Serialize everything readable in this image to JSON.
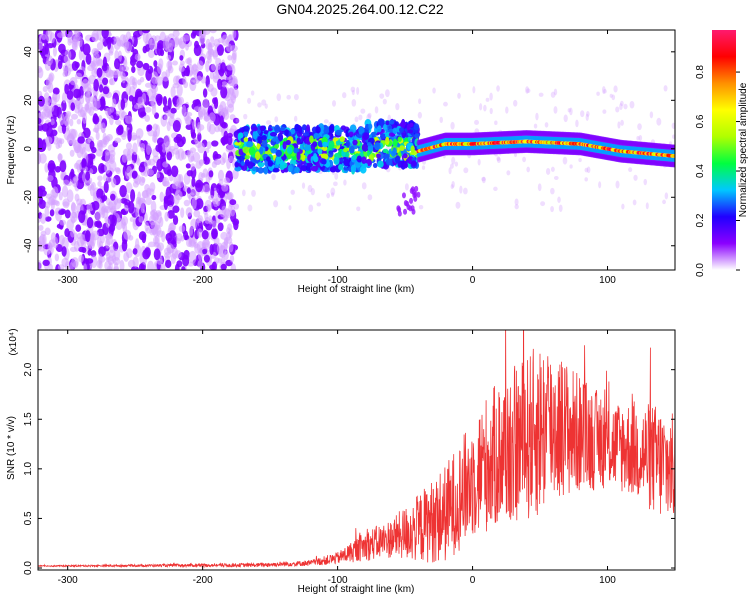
{
  "title": "GN04.2025.264.00.12.C22",
  "chart_data": [
    {
      "type": "heatmap",
      "xlabel": "Height of straight line (km)",
      "ylabel": "Frequency (Hz)",
      "xlim": [
        -322,
        150
      ],
      "ylim": [
        -50,
        49
      ],
      "x_ticks": [
        -300,
        -200,
        -100,
        0,
        100
      ],
      "x_tick_labels": [
        "-300",
        "-200",
        "-100",
        "0",
        "100"
      ],
      "y_ticks": [
        -40,
        -20,
        0,
        20,
        40
      ],
      "y_tick_labels": [
        "-40",
        "-20",
        "0",
        "20",
        "40"
      ],
      "colorbar": {
        "label": "Normalized spectral amplitude",
        "range": [
          0,
          0.97
        ],
        "ticks": [
          0.0,
          0.2,
          0.4,
          0.6,
          0.8
        ],
        "tick_labels": [
          "0.0",
          "0.2",
          "0.4",
          "0.6",
          "0.8"
        ],
        "colors": [
          "#ffffff",
          "#8a00ff",
          "#2000ff",
          "#00c8ff",
          "#00ff40",
          "#b0ff00",
          "#ffff00",
          "#ff9000",
          "#ff0000",
          "#ff1a6e"
        ]
      },
      "regions": [
        {
          "name": "noise",
          "x_range": [
            -322,
            -175
          ],
          "freq_range": [
            -50,
            49
          ],
          "amplitude": 0.1
        },
        {
          "name": "onset",
          "x_range": [
            -175,
            -40
          ],
          "freq_range": [
            -8,
            8
          ],
          "amplitude": 0.35
        },
        {
          "name": "trail",
          "x_range": [
            -40,
            150
          ],
          "freq_center": [
            [
              -40,
              -1
            ],
            [
              -20,
              2
            ],
            [
              0,
              2
            ],
            [
              40,
              3
            ],
            [
              80,
              2
            ],
            [
              110,
              -1
            ],
            [
              150,
              -3
            ]
          ],
          "amplitude": 0.8
        }
      ]
    },
    {
      "type": "line",
      "xlabel": "Height of straight line (km)",
      "ylabel": "SNR (10 * v/v)",
      "y_scale_label": "(x10⁴)",
      "xlim": [
        -322,
        150
      ],
      "ylim": [
        -0.02,
        2.4
      ],
      "x_ticks": [
        -300,
        -200,
        -100,
        0,
        100
      ],
      "x_tick_labels": [
        "-300",
        "-200",
        "-100",
        "0",
        "100"
      ],
      "y_ticks": [
        0.0,
        0.5,
        1.0,
        1.5,
        2.0
      ],
      "y_tick_labels": [
        "0.0",
        "0.5",
        "1.0",
        "1.5",
        "2.0"
      ],
      "series": [
        {
          "name": "SNR",
          "color": "#ee3333",
          "envelope_x": [
            -322,
            -160,
            -120,
            -100,
            -80,
            -60,
            -40,
            -20,
            0,
            10,
            20,
            40,
            50,
            60,
            80,
            100,
            120,
            140,
            150
          ],
          "envelope_mean": [
            0.02,
            0.03,
            0.05,
            0.1,
            0.22,
            0.3,
            0.4,
            0.55,
            0.9,
            1.05,
            1.15,
            1.3,
            1.4,
            1.45,
            1.35,
            1.25,
            1.2,
            1.05,
            1.0
          ],
          "envelope_amp": [
            0.005,
            0.02,
            0.03,
            0.06,
            0.15,
            0.2,
            0.35,
            0.5,
            0.6,
            0.7,
            0.75,
            0.85,
            0.9,
            0.8,
            0.6,
            0.45,
            0.5,
            0.6,
            0.55
          ]
        }
      ]
    }
  ]
}
